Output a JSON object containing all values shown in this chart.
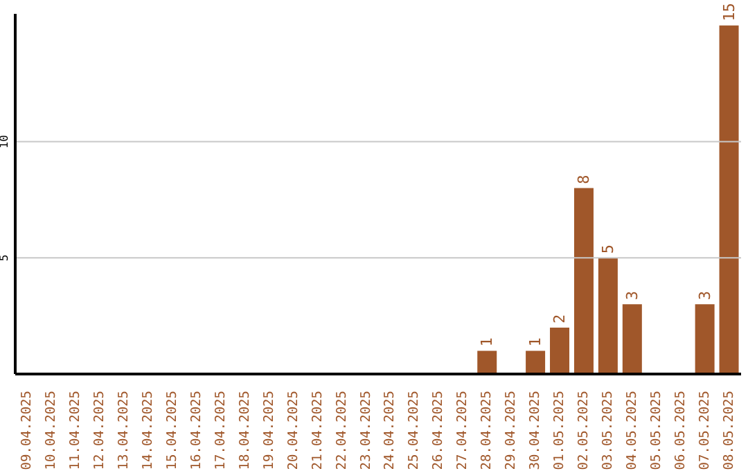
{
  "chart_data": {
    "type": "bar",
    "categories": [
      "09.04.2025",
      "10.04.2025",
      "11.04.2025",
      "12.04.2025",
      "13.04.2025",
      "14.04.2025",
      "15.04.2025",
      "16.04.2025",
      "17.04.2025",
      "18.04.2025",
      "19.04.2025",
      "20.04.2025",
      "21.04.2025",
      "22.04.2025",
      "23.04.2025",
      "24.04.2025",
      "25.04.2025",
      "26.04.2025",
      "27.04.2025",
      "28.04.2025",
      "29.04.2025",
      "30.04.2025",
      "01.05.2025",
      "02.05.2025",
      "03.05.2025",
      "04.05.2025",
      "05.05.2025",
      "06.05.2025",
      "07.05.2025",
      "08.05.2025"
    ],
    "values": [
      0,
      0,
      0,
      0,
      0,
      0,
      0,
      0,
      0,
      0,
      0,
      0,
      0,
      0,
      0,
      0,
      0,
      0,
      0,
      1,
      0,
      1,
      2,
      8,
      5,
      3,
      0,
      0,
      3,
      15
    ],
    "value_labels": [
      null,
      null,
      null,
      null,
      null,
      null,
      null,
      null,
      null,
      null,
      null,
      null,
      null,
      null,
      null,
      null,
      null,
      null,
      null,
      "1",
      null,
      "1",
      "2",
      "8",
      "5",
      "3",
      null,
      null,
      "3",
      "15"
    ],
    "color": "#a0572a",
    "ylim": [
      0,
      15.5
    ],
    "yticks": [
      5,
      10
    ],
    "grid": "y",
    "legend": false
  }
}
